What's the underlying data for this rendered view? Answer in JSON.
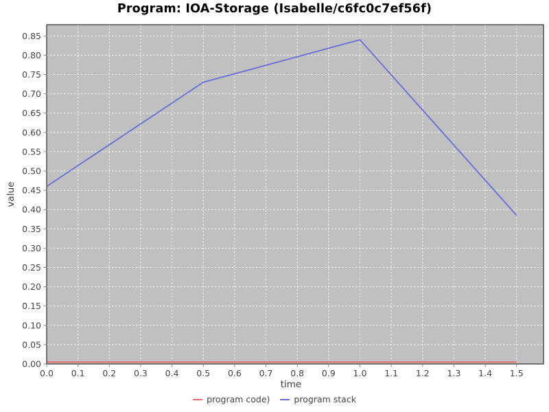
{
  "chart_data": {
    "type": "line",
    "title": "Program: IOA-Storage (Isabelle/c6fc0c7ef56f)",
    "xlabel": "time",
    "ylabel": "value",
    "xlim": [
      0,
      1.586
    ],
    "ylim": [
      0,
      0.879
    ],
    "grid": true,
    "legend_position": "bottom",
    "plot_bg_color": "#c0c0c0",
    "grid_color": "#ffffff",
    "border_color": "#5a5a5a",
    "tick_color": "#8a8a8a",
    "tick_label_color": "#444444",
    "x_ticks": [
      0.0,
      0.1,
      0.2,
      0.3,
      0.4,
      0.5,
      0.6,
      0.7,
      0.8,
      0.9,
      1.0,
      1.1,
      1.2,
      1.3,
      1.4,
      1.5
    ],
    "x_tick_labels": [
      "0.0",
      "0.1",
      "0.2",
      "0.3",
      "0.4",
      "0.5",
      "0.6",
      "0.7",
      "0.8",
      "0.9",
      "1.0",
      "1.1",
      "1.2",
      "1.3",
      "1.4",
      "1.5"
    ],
    "y_ticks": [
      0.0,
      0.05,
      0.1,
      0.15,
      0.2,
      0.25,
      0.3,
      0.35,
      0.4,
      0.45,
      0.5,
      0.55,
      0.6,
      0.65,
      0.7,
      0.75,
      0.8,
      0.85
    ],
    "y_tick_labels": [
      "0.00",
      "0.05",
      "0.10",
      "0.15",
      "0.20",
      "0.25",
      "0.30",
      "0.35",
      "0.40",
      "0.45",
      "0.50",
      "0.55",
      "0.60",
      "0.65",
      "0.70",
      "0.75",
      "0.80",
      "0.85"
    ],
    "series": [
      {
        "name": "program code)",
        "color": "#e96a6a",
        "stroke_width": 2,
        "points": [
          [
            0.0,
            0.005
          ],
          [
            0.5,
            0.005
          ],
          [
            1.0,
            0.005
          ],
          [
            1.5,
            0.005
          ]
        ]
      },
      {
        "name": "program stack",
        "color": "#6b6bdb",
        "stroke_width": 1.8,
        "points": [
          [
            0.0,
            0.46
          ],
          [
            0.5,
            0.73
          ],
          [
            1.0,
            0.84
          ],
          [
            1.5,
            0.385
          ]
        ]
      }
    ]
  }
}
